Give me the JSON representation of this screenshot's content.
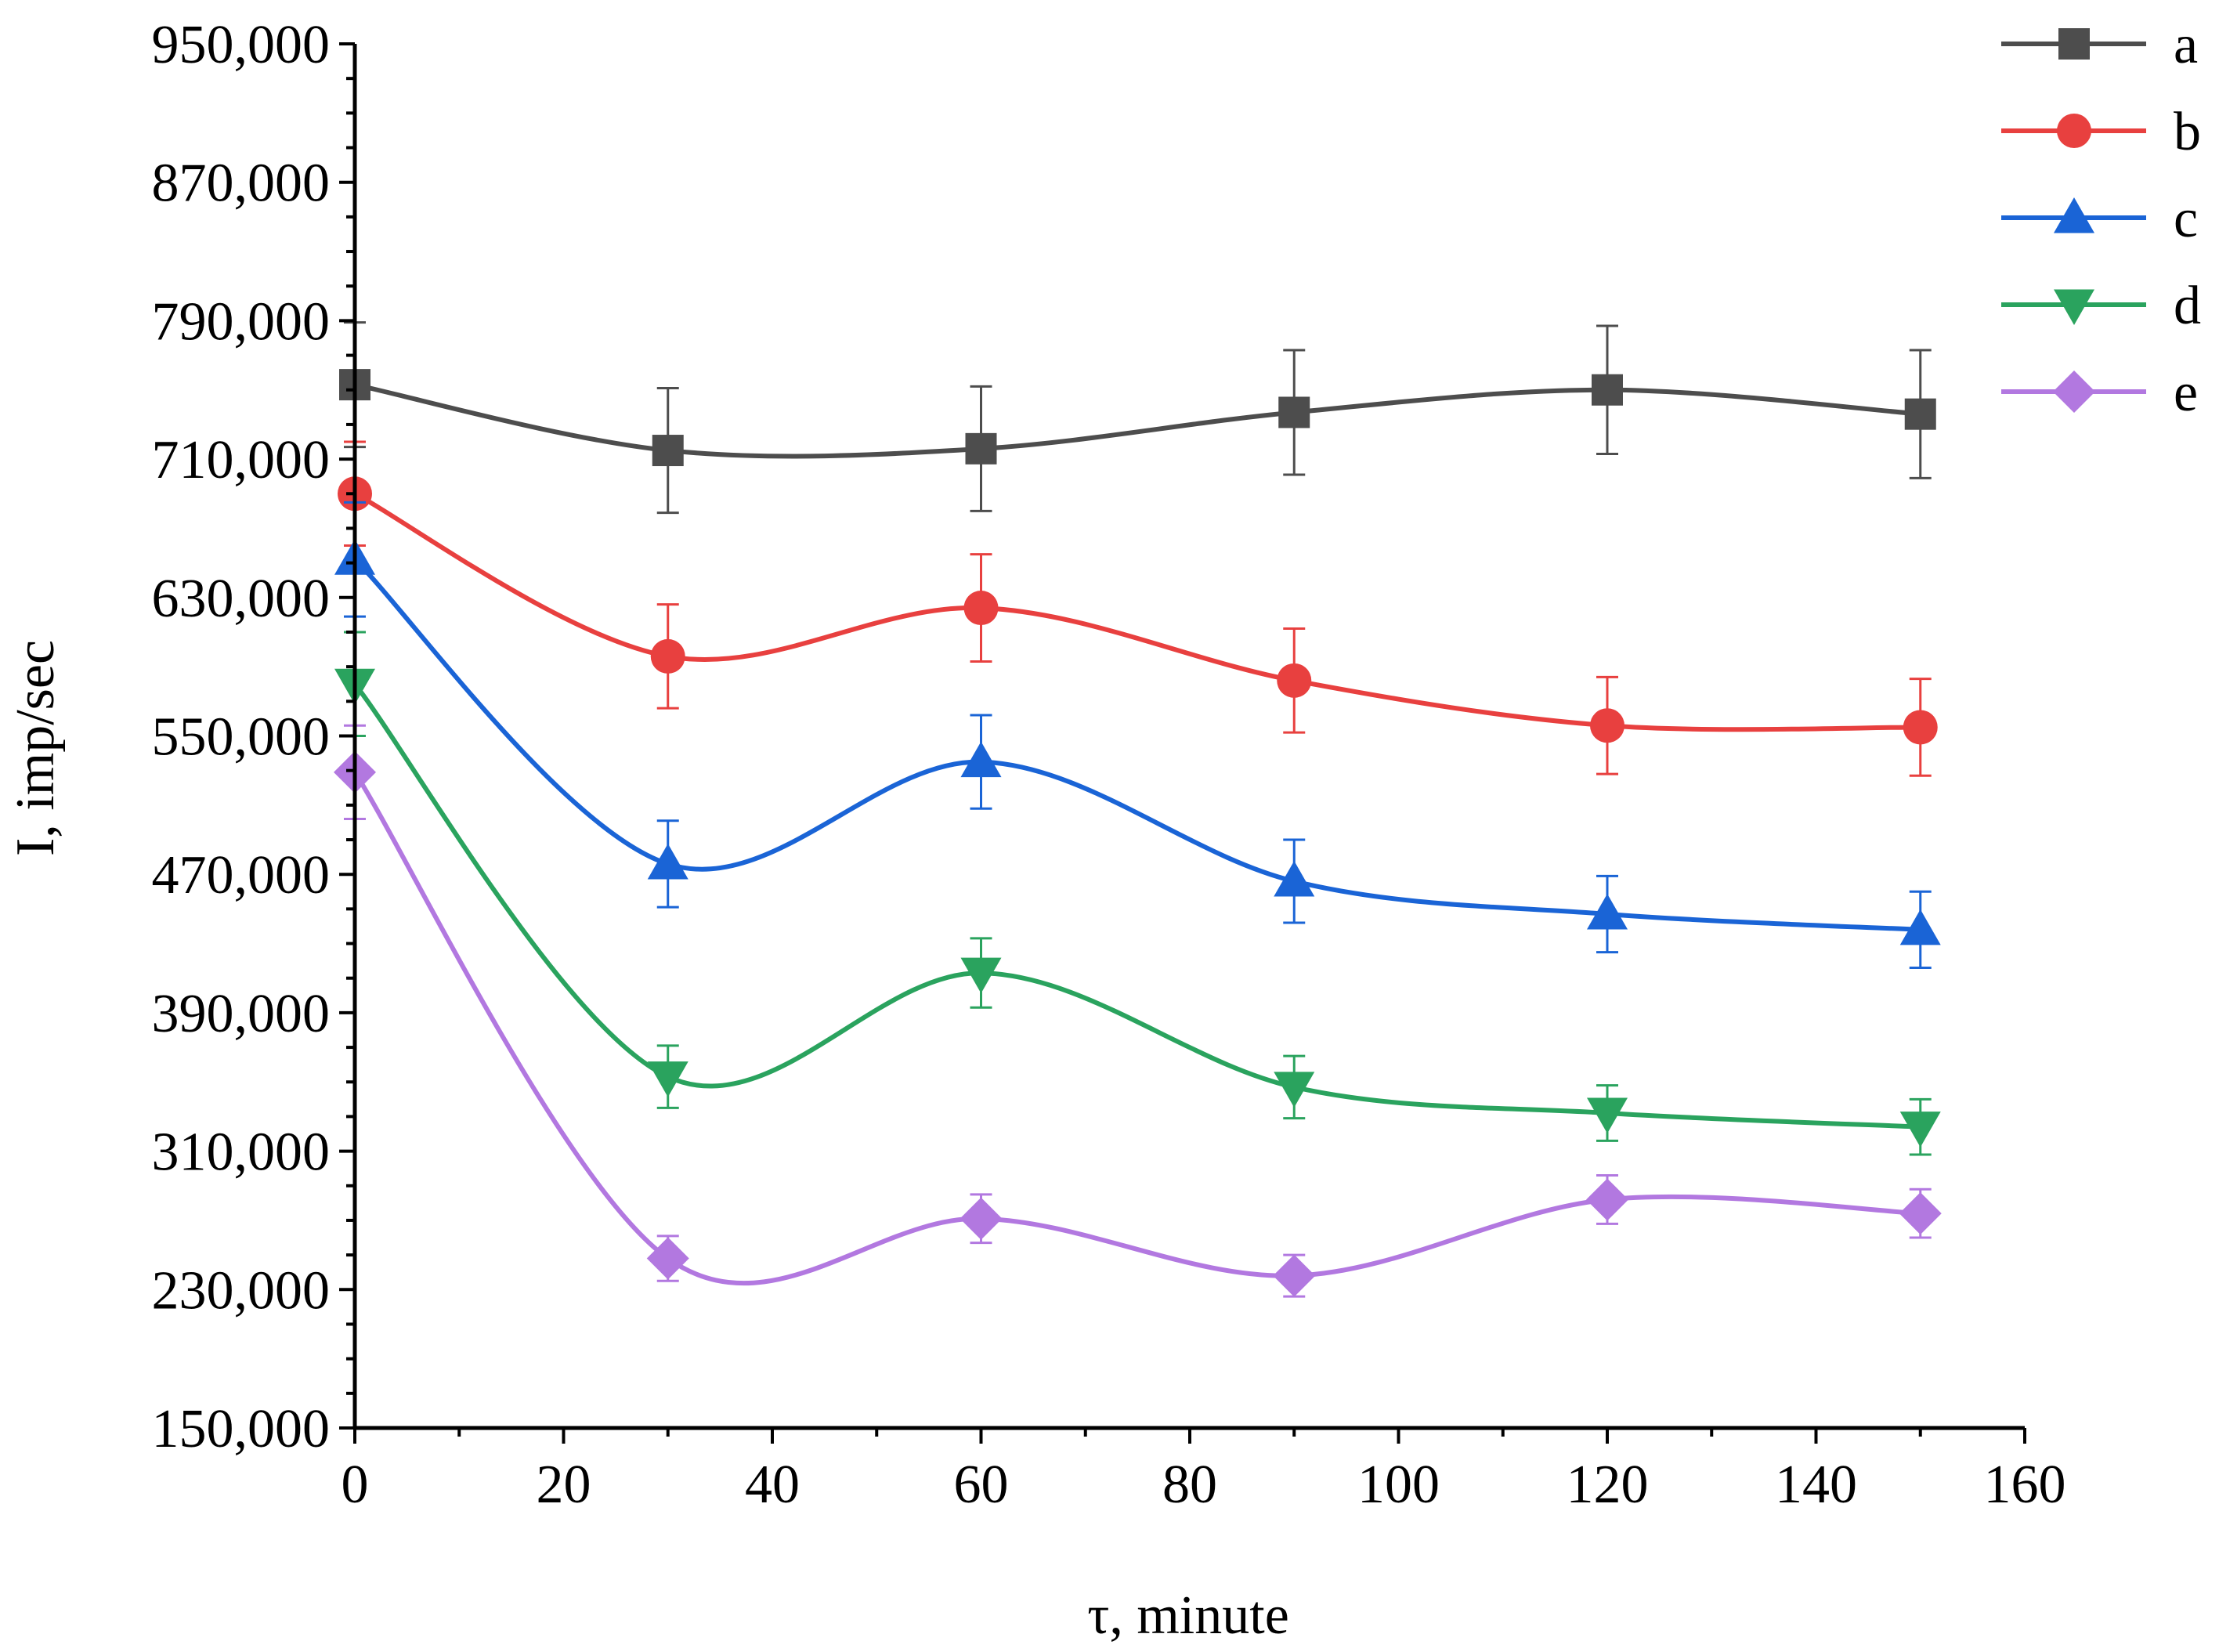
{
  "chart_data": {
    "type": "line",
    "title": "",
    "xlabel": "τ, minute",
    "ylabel": "I, imp/sec",
    "xlim": [
      0,
      160
    ],
    "ylim": [
      150000,
      950000
    ],
    "xticks": [
      0,
      20,
      40,
      60,
      80,
      100,
      120,
      140,
      160
    ],
    "xtick_labels": [
      "0",
      "20",
      "40",
      "60",
      "80",
      "100",
      "120",
      "140",
      "160"
    ],
    "yticks": [
      150000,
      230000,
      310000,
      390000,
      470000,
      550000,
      630000,
      710000,
      790000,
      870000,
      950000
    ],
    "ytick_labels": [
      "150,000",
      "230,000",
      "310,000",
      "390,000",
      "470,000",
      "550,000",
      "630,000",
      "710,000",
      "790,000",
      "870,000",
      "950,000"
    ],
    "legend_position": "top-right",
    "grid": false,
    "x": [
      0,
      30,
      60,
      90,
      120,
      150
    ],
    "series": [
      {
        "name": "a",
        "color": "#4d4d4d",
        "marker": "square",
        "values": [
          753000,
          715000,
          716000,
          737000,
          750000,
          736000
        ],
        "errors": [
          36000,
          36000,
          36000,
          36000,
          37000,
          37000
        ]
      },
      {
        "name": "b",
        "color": "#e8403f",
        "marker": "circle",
        "values": [
          690000,
          596000,
          624000,
          582000,
          556000,
          555000
        ],
        "errors": [
          30000,
          30000,
          31000,
          30000,
          28000,
          28000
        ]
      },
      {
        "name": "c",
        "color": "#1a64d6",
        "marker": "triangle-up",
        "values": [
          652000,
          476000,
          535000,
          466000,
          447000,
          438000
        ],
        "errors": [
          33000,
          25000,
          27000,
          24000,
          22000,
          22000
        ]
      },
      {
        "name": "d",
        "color": "#2aa35e",
        "marker": "triangle-down",
        "values": [
          580000,
          353000,
          413000,
          347000,
          332000,
          324000
        ],
        "errors": [
          30000,
          18000,
          20000,
          18000,
          16000,
          16000
        ]
      },
      {
        "name": "e",
        "color": "#b278e0",
        "marker": "diamond",
        "values": [
          529000,
          248000,
          271000,
          238000,
          282000,
          274000
        ],
        "errors": [
          27000,
          13000,
          14000,
          12000,
          14000,
          14000
        ]
      }
    ]
  }
}
